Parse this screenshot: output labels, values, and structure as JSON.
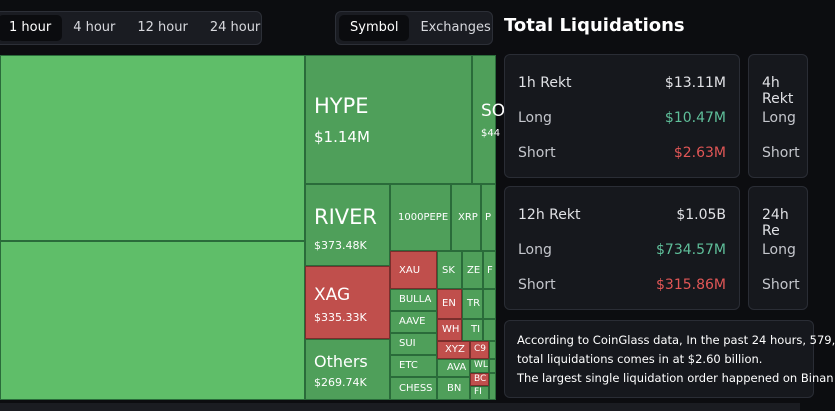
{
  "time_tabs": [
    "1 hour",
    "4 hour",
    "12 hour",
    "24 hour"
  ],
  "view_tabs": [
    "Symbol",
    "Exchanges"
  ],
  "panel_title": "Total Liquidations",
  "treemap": {
    "hype": {
      "symbol": "HYPE",
      "amount": "$1.14M"
    },
    "so": {
      "symbol": "SO",
      "amount": "$44"
    },
    "river": {
      "symbol": "RIVER",
      "amount": "$373.48K"
    },
    "pepe": {
      "symbol": "1000PEPE"
    },
    "xrp": {
      "symbol": "XRP"
    },
    "p": {
      "symbol": "P"
    },
    "xag": {
      "symbol": "XAG",
      "amount": "$335.33K"
    },
    "xau": {
      "symbol": "XAU"
    },
    "sk": {
      "symbol": "SK"
    },
    "ze": {
      "symbol": "ZE"
    },
    "f": {
      "symbol": "F"
    },
    "bulla": {
      "symbol": "BULLA"
    },
    "en": {
      "symbol": "EN"
    },
    "tr": {
      "symbol": "TR"
    },
    "aave": {
      "symbol": "AAVE"
    },
    "wh": {
      "symbol": "WH"
    },
    "ti": {
      "symbol": "TI"
    },
    "sui": {
      "symbol": "SUI"
    },
    "xyz": {
      "symbol": "XYZ"
    },
    "c9": {
      "symbol": "C9"
    },
    "etc": {
      "symbol": "ETC"
    },
    "ava": {
      "symbol": "AVA"
    },
    "wl": {
      "symbol": "WL"
    },
    "bc": {
      "symbol": "BC"
    },
    "others": {
      "symbol": "Others",
      "amount": "$269.74K"
    },
    "chess": {
      "symbol": "CHESS"
    },
    "bn": {
      "symbol": "BN"
    },
    "fi": {
      "symbol": "FI"
    }
  },
  "cards": {
    "h1": {
      "title": "1h Rekt",
      "total": "$13.11M",
      "long_label": "Long",
      "long": "$10.47M",
      "short_label": "Short",
      "short": "$2.63M"
    },
    "h4": {
      "title": "4h Rekt",
      "long_label": "Long",
      "short_label": "Short"
    },
    "h12": {
      "title": "12h Rekt",
      "total": "$1.05B",
      "long_label": "Long",
      "long": "$734.57M",
      "short_label": "Short",
      "short": "$315.86M"
    },
    "h24": {
      "title": "24h Re",
      "long_label": "Long",
      "short_label": "Short"
    }
  },
  "summary": {
    "line1": "According to CoinGlass data, In the past 24 hours, 579,",
    "line2": "total liquidations comes in at $2.60 billion.",
    "line3": "The largest single liquidation order happened on Binan"
  },
  "colors": {
    "long_green": "#5fbf9a",
    "short_red": "#e05656",
    "tile_green": "#5fbe69",
    "tile_red": "#c04f4c"
  }
}
